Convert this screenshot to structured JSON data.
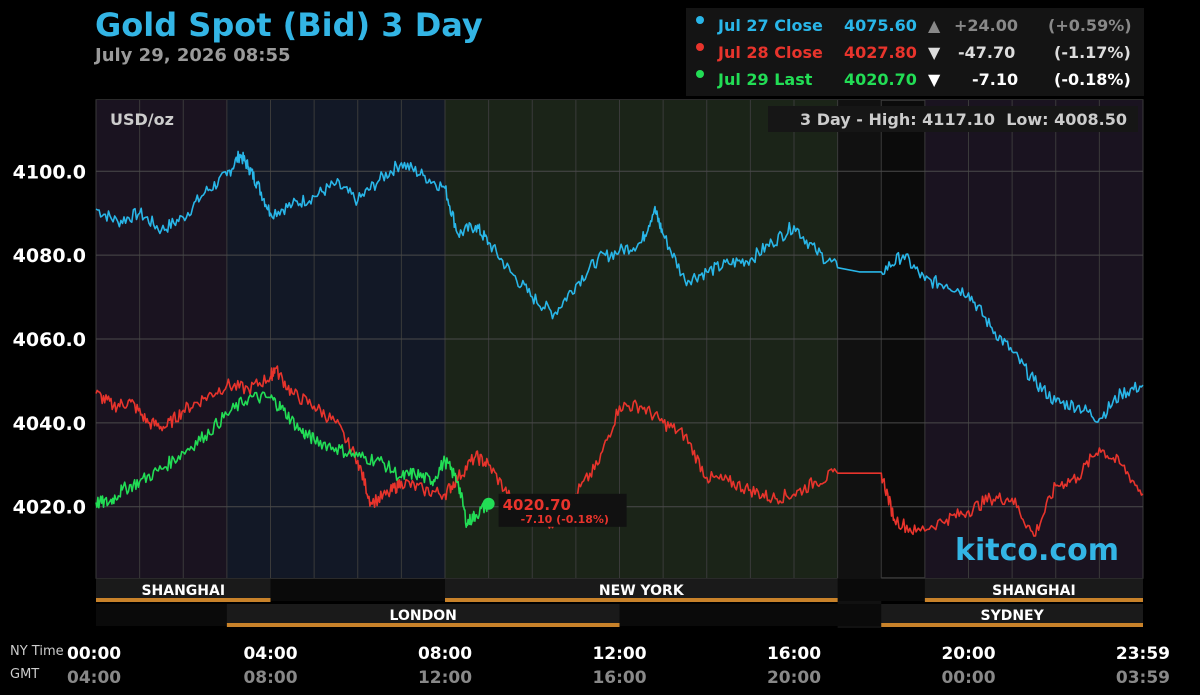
{
  "header": {
    "title": "Gold Spot (Bid) 3 Day",
    "timestamp": "July 29, 2026 08:55"
  },
  "legend": [
    {
      "label": "Jul 27 Close",
      "value": "4075.60",
      "arrow": "▲",
      "change": "+24.00",
      "pct": "(+0.59%)",
      "color": "#29b6e8",
      "arrow_color": "#888888",
      "text_color": "#888888"
    },
    {
      "label": "Jul 28 Close",
      "value": "4027.80",
      "arrow": "▼",
      "change": "-47.70",
      "pct": "(-1.17%)",
      "color": "#e8342c",
      "arrow_color": "#dddddd",
      "text_color": "#dddddd"
    },
    {
      "label": "Jul 29 Last",
      "value": "4020.70",
      "arrow": "▼",
      "change": "-7.10",
      "pct": "(-0.18%)",
      "color": "#22dd55",
      "arrow_color": "#ffffff",
      "text_color": "#ffffff"
    }
  ],
  "unit_label": "USD/oz",
  "range_label": "3 Day - High: 4117.10  Low: 4008.50",
  "last_label": {
    "price": "4020.70",
    "change": "-7.10 (-0.18%)"
  },
  "watermark": "kitco.com",
  "time_labels": {
    "ny": "NY Time",
    "gmt": "GMT"
  },
  "colors": {
    "background": "#000000",
    "plot": "#0b0b0b",
    "grid": "#3a3a3a",
    "ny_session": "#1b2418",
    "london_session": "#121826",
    "asia_session": "#1a1320",
    "jul27": "#29b6e8",
    "jul28": "#e8342c",
    "jul29": "#22dd55",
    "session_bar": "#c8822a"
  },
  "sessions_top": [
    {
      "name": "SHANGHAI",
      "start": 0,
      "end": 4
    },
    {
      "name": "NEW YORK",
      "start": 8,
      "end": 17
    },
    {
      "name": "SHANGHAI",
      "start": 19,
      "end": 24
    }
  ],
  "sessions_bottom": [
    {
      "name": "LONDON",
      "start": 3,
      "end": 12
    },
    {
      "name": "SYDNEY",
      "start": 18,
      "end": 24
    }
  ],
  "chart_data": {
    "type": "line",
    "x_unit": "hour (NY time)",
    "xlim": [
      0,
      24
    ],
    "ylim": [
      4003,
      4117
    ],
    "yticks": [
      4020.0,
      4040.0,
      4060.0,
      4080.0,
      4100.0
    ],
    "ytick_labels": [
      "4020.0",
      "4040.0",
      "4060.0",
      "4080.0",
      "4100.0"
    ],
    "xticks": [
      0,
      4,
      8,
      12,
      16,
      20,
      24
    ],
    "ny_tick_labels": [
      "00:00",
      "04:00",
      "08:00",
      "12:00",
      "16:00",
      "20:00",
      "23:59"
    ],
    "gmt_tick_labels": [
      "04:00",
      "08:00",
      "12:00",
      "16:00",
      "20:00",
      "00:00",
      "03:59"
    ],
    "grid": true,
    "closed_period": [
      17,
      18
    ],
    "series": [
      {
        "name": "Jul 27 Close",
        "color": "#29b6e8",
        "x": [
          0,
          0.5,
          1,
          1.5,
          2,
          2.5,
          3,
          3.3,
          3.5,
          3.7,
          4,
          4.5,
          5,
          5.5,
          6,
          6.5,
          7,
          7.5,
          8,
          8.3,
          8.7,
          9,
          9.5,
          10,
          10.5,
          11,
          11.5,
          12,
          12.5,
          12.8,
          13,
          13.5,
          14,
          14.5,
          15,
          15.5,
          16,
          16.5,
          17,
          17.5,
          18,
          18.5,
          19,
          19.5,
          20,
          20.5,
          21,
          21.5,
          22,
          22.5,
          23,
          23.5,
          24
        ],
        "y": [
          4091,
          4088,
          4090,
          4086,
          4089,
          4095,
          4099,
          4104,
          4101,
          4097,
          4090,
          4092,
          4094,
          4097,
          4093,
          4098,
          4102,
          4099,
          4096,
          4085,
          4087,
          4083,
          4076,
          4070,
          4066,
          4073,
          4079,
          4081,
          4083,
          4091,
          4085,
          4074,
          4076,
          4078,
          4079,
          4083,
          4087,
          4081,
          4077,
          4076,
          4076,
          4080,
          4074,
          4073,
          4071,
          4063,
          4057,
          4050,
          4045,
          4044,
          4041,
          4047,
          4049
        ]
      },
      {
        "name": "Jul 28 Close",
        "color": "#e8342c",
        "x": [
          0,
          0.4,
          0.8,
          1.2,
          1.6,
          2,
          2.5,
          3,
          3.5,
          4,
          4.1,
          4.5,
          5,
          5.5,
          6,
          6.3,
          6.7,
          7,
          7.5,
          8,
          8.3,
          8.7,
          9,
          9.5,
          10,
          10.5,
          11,
          11.5,
          12,
          12.5,
          13,
          13.5,
          14,
          14.5,
          15,
          15.5,
          16,
          16.5,
          17,
          17.5,
          18,
          18.3,
          18.8,
          19.5,
          20,
          20.5,
          21,
          21.5,
          22,
          22.5,
          23,
          23.5,
          24
        ],
        "y": [
          4047,
          4044,
          4045,
          4040,
          4039,
          4043,
          4046,
          4049,
          4048,
          4051,
          4053,
          4047,
          4044,
          4040,
          4031,
          4021,
          4023,
          4026,
          4024,
          4023,
          4027,
          4032,
          4030,
          4022,
          4018,
          4016,
          4023,
          4030,
          4044,
          4044,
          4040,
          4037,
          4027,
          4026,
          4024,
          4022,
          4023,
          4026,
          4028,
          4028,
          4028,
          4017,
          4014,
          4017,
          4019,
          4022,
          4022,
          4013,
          4025,
          4027,
          4034,
          4030,
          4023
        ]
      },
      {
        "name": "Jul 29 Last",
        "color": "#22dd55",
        "x": [
          0,
          0.3,
          0.6,
          1,
          1.5,
          2,
          2.5,
          3,
          3.5,
          4,
          4.3,
          4.7,
          5,
          5.5,
          6,
          6.5,
          7,
          7.3,
          7.7,
          8,
          8.3,
          8.5,
          8.7,
          9
        ],
        "y": [
          4021,
          4021,
          4024,
          4026,
          4029,
          4033,
          4037,
          4042,
          4046,
          4046,
          4043,
          4038,
          4036,
          4034,
          4032,
          4031,
          4027,
          4028,
          4026,
          4031,
          4026,
          4016,
          4018,
          4020.7
        ]
      }
    ]
  }
}
